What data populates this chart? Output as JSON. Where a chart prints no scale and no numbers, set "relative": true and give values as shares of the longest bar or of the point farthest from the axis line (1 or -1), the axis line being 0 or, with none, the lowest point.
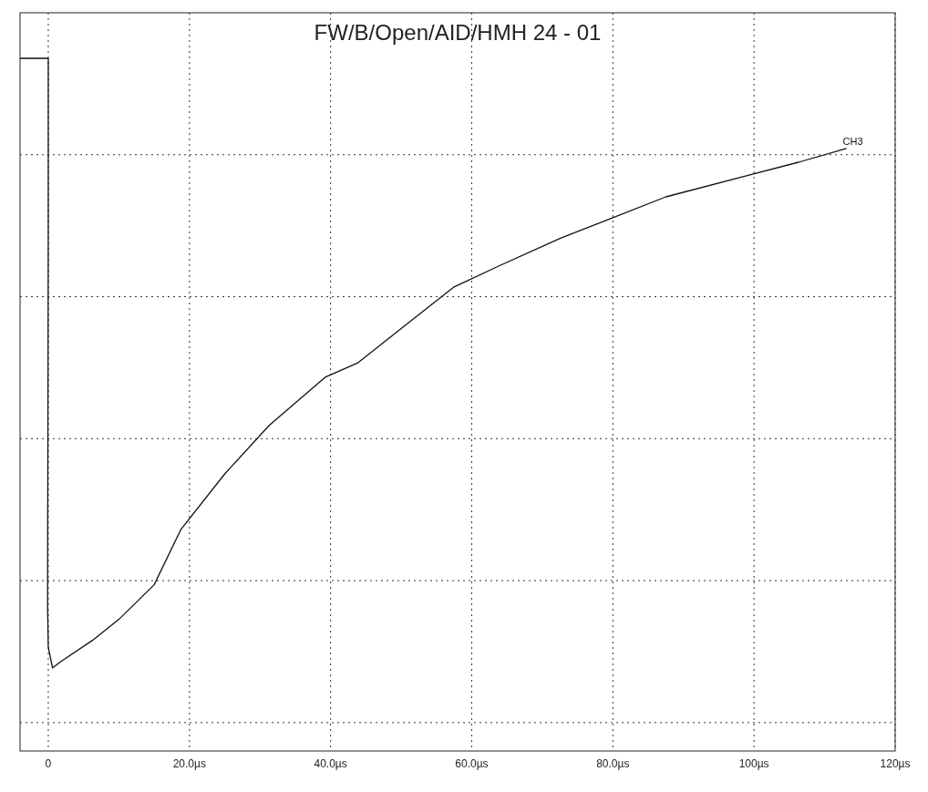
{
  "chart_data": {
    "type": "line",
    "title": "FW/B/Open/AID/HMH 24 - 01",
    "relative": true,
    "xlim": [
      -4,
      120
    ],
    "xticks": [
      0,
      {
        "value": 20,
        "label": "20.0µs"
      },
      {
        "value": 40,
        "label": "40.0µs"
      },
      {
        "value": 60,
        "label": "60.0µs"
      },
      {
        "value": 80,
        "label": "80.0µs"
      },
      {
        "value": 100,
        "label": "100µs"
      },
      {
        "value": 120,
        "label": "120µs"
      }
    ],
    "grid": true,
    "marker": "none",
    "line_style": "solid",
    "series": [
      {
        "name": "CH3",
        "color": "#111111",
        "x": [
          -4,
          0,
          0,
          -0.1,
          0,
          0.6,
          1.9,
          6.3,
          10,
          15,
          18.8,
          25,
          31.3,
          39.3,
          43.8,
          50,
          57.5,
          63.8,
          72.5,
          80,
          87.5,
          98.8,
          106.3,
          113.1
        ],
        "values": [
          1,
          1,
          0.75,
          0.21,
          0.15,
          0.12,
          0.13,
          0.16,
          0.19,
          0.24,
          0.32,
          0.4,
          0.47,
          0.54,
          0.56,
          0.61,
          0.67,
          0.7,
          0.74,
          0.77,
          0.8,
          0.83,
          0.85,
          0.87
        ]
      }
    ]
  }
}
